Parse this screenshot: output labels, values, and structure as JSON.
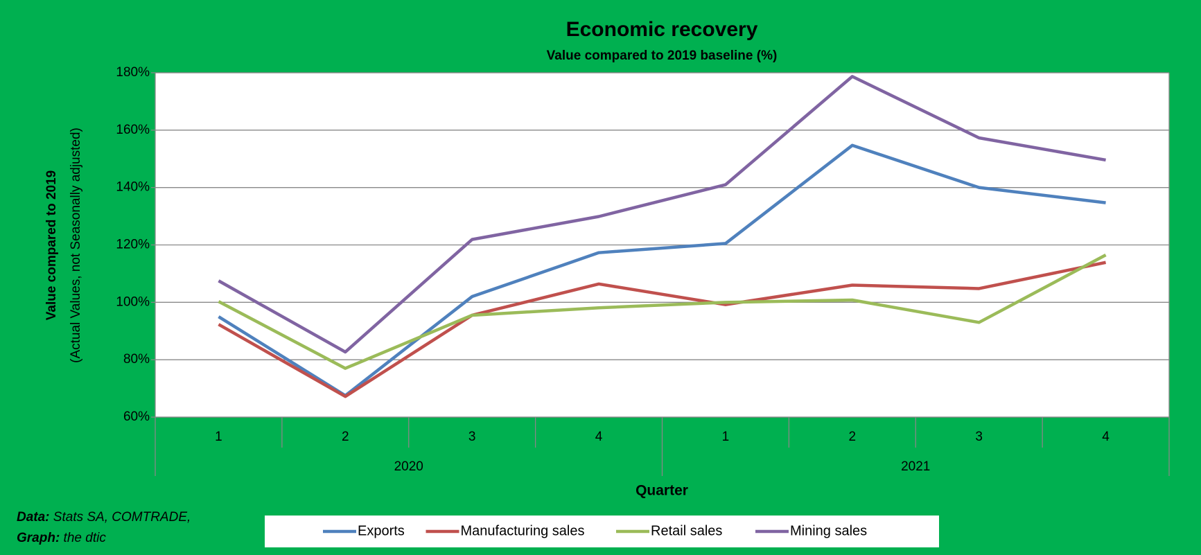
{
  "chart_data": {
    "type": "line",
    "title": "Economic recovery",
    "subtitle": "Value compared to 2019 baseline (%)",
    "y_axis_label": "Value compared to 2019",
    "y_axis_sublabel": "(Actual Values, not Seasonally adjusted)",
    "x_axis_label": "Quarter",
    "categories": [
      "1",
      "2",
      "3",
      "4",
      "1",
      "2",
      "3",
      "4"
    ],
    "category_groups": [
      "2020",
      "2021"
    ],
    "series": [
      {
        "name": "Exports",
        "color": "#4f81bd",
        "values": [
          95,
          67.5,
          102,
          117.3,
          120.5,
          154.7,
          140,
          134.7
        ]
      },
      {
        "name": "Manufacturing sales",
        "color": "#c0504d",
        "values": [
          92.3,
          67.2,
          95.5,
          106.4,
          99.2,
          106,
          104.8,
          113.9
        ]
      },
      {
        "name": "Retail sales",
        "color": "#9bbb59",
        "values": [
          100.3,
          77,
          95.5,
          98.1,
          100,
          100.8,
          93,
          116.5
        ]
      },
      {
        "name": "Mining sales",
        "color": "#8064a2",
        "values": [
          107.5,
          82.7,
          121.9,
          129.9,
          141,
          178.7,
          157.3,
          149.6
        ]
      }
    ],
    "ylim": [
      60,
      180
    ],
    "yticks": [
      {
        "value": 60,
        "label": "60%"
      },
      {
        "value": 80,
        "label": "80%"
      },
      {
        "value": 100,
        "label": "100%"
      },
      {
        "value": 120,
        "label": "120%"
      },
      {
        "value": 140,
        "label": "140%"
      },
      {
        "value": 160,
        "label": "160%"
      },
      {
        "value": 180,
        "label": "180%"
      }
    ],
    "grid": true,
    "legend_position": "bottom",
    "background_color": "#00b050",
    "source": [
      {
        "label": "Data:",
        "text": " Stats SA, COMTRADE,"
      },
      {
        "label": "Graph:",
        "text": " the dtic"
      }
    ]
  }
}
